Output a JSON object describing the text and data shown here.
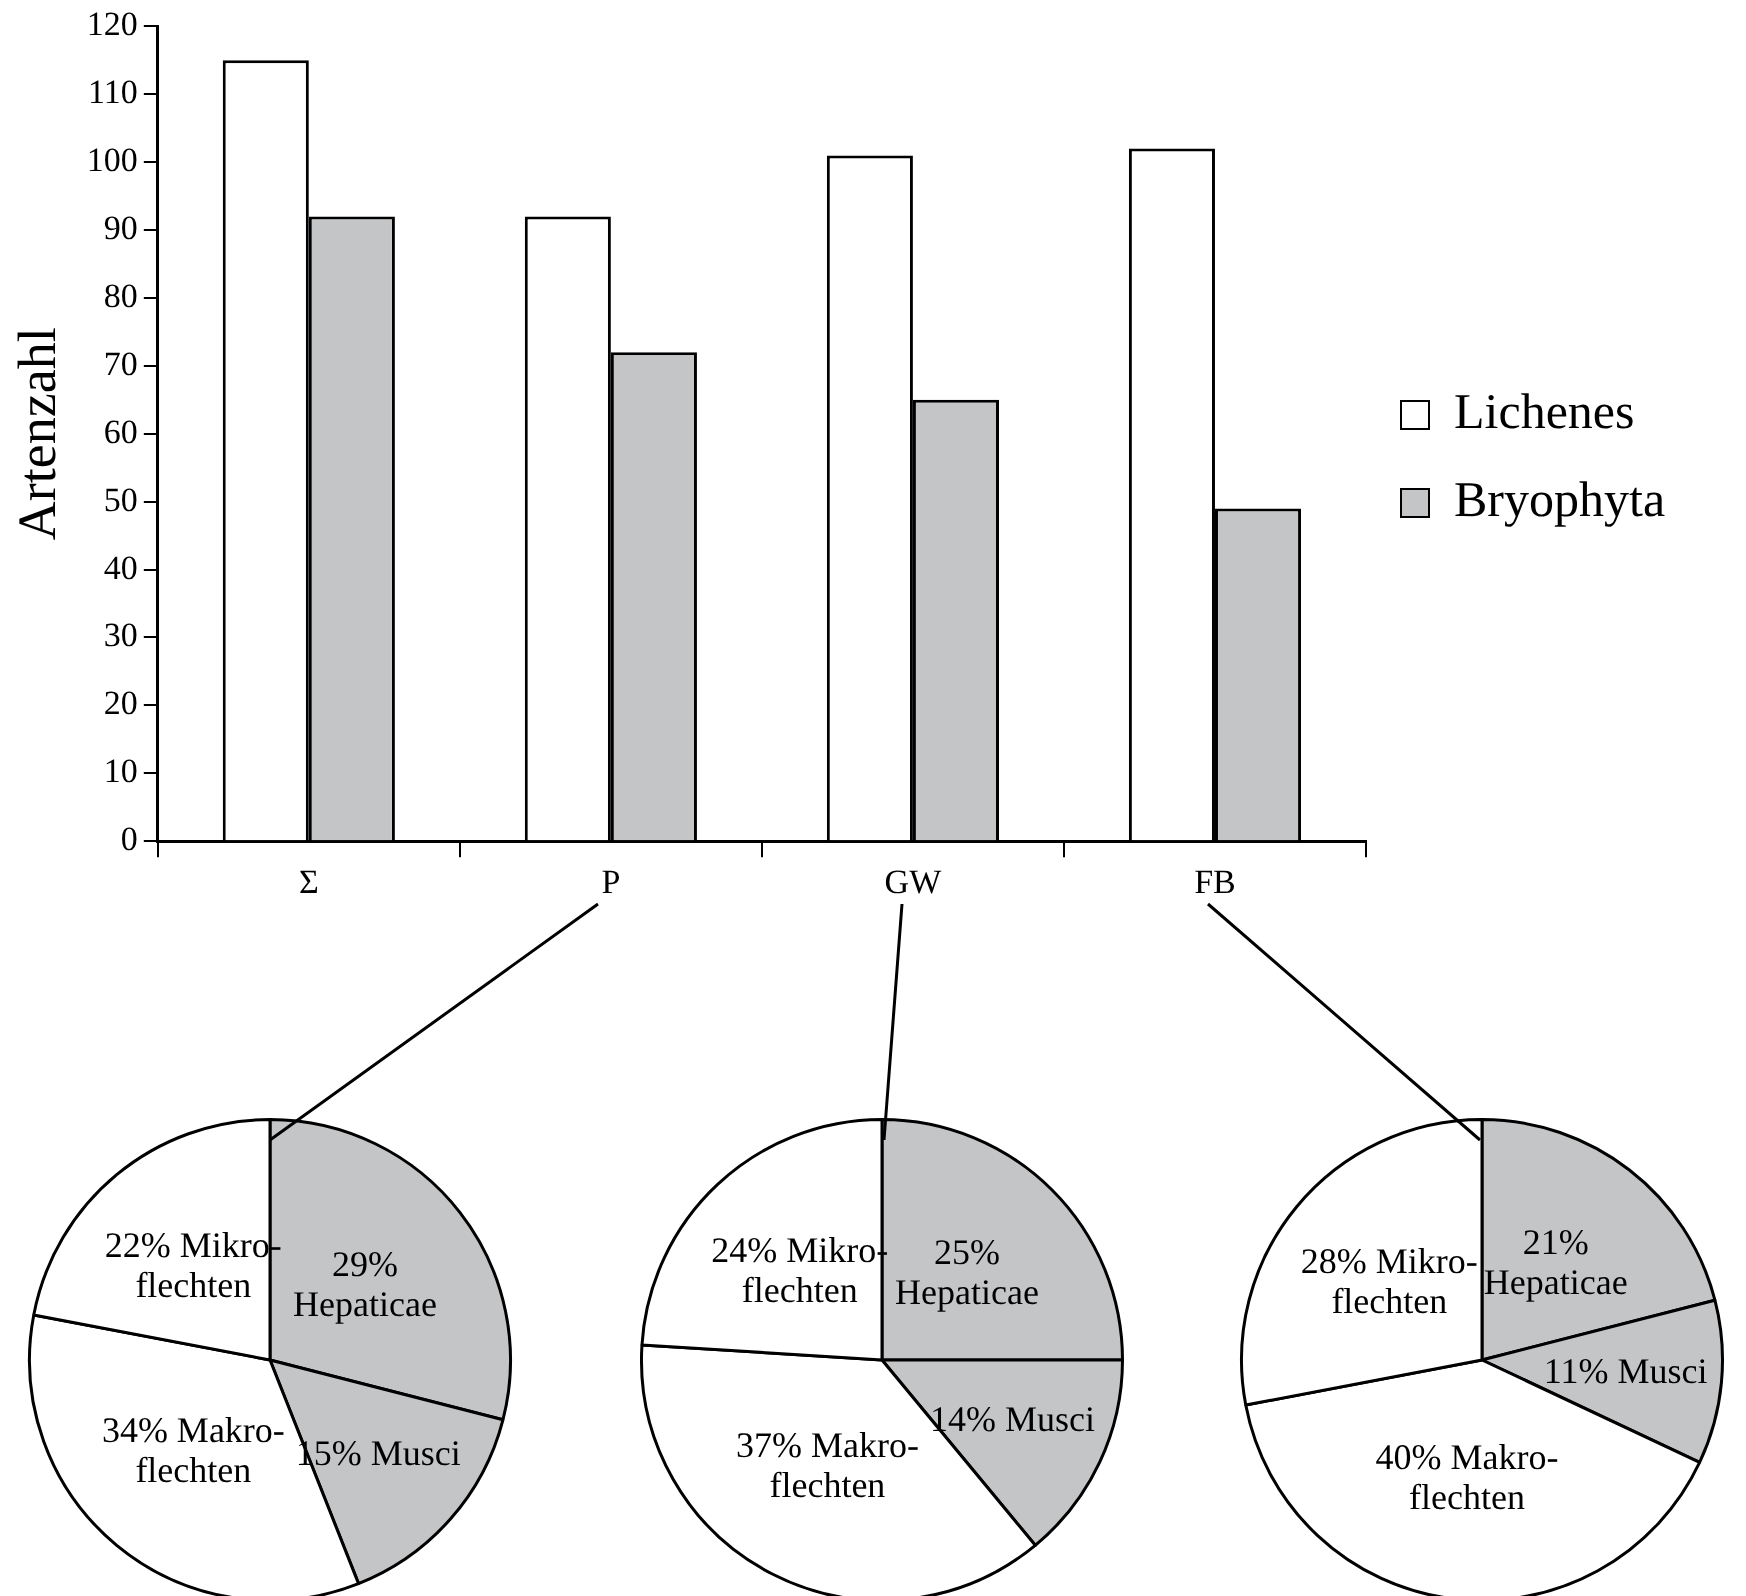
{
  "chart_data": [
    {
      "type": "bar",
      "categories": [
        "Σ",
        "P",
        "GW",
        "FB"
      ],
      "ylabel": "Artenzahl",
      "ylim": [
        0,
        120
      ],
      "yticks": [
        0,
        10,
        20,
        30,
        40,
        50,
        60,
        70,
        80,
        90,
        100,
        110,
        120
      ],
      "grid": false,
      "legend": "right",
      "series": [
        {
          "name": "Lichenes",
          "color": "#ffffff",
          "values": [
            115,
            92,
            101,
            102
          ]
        },
        {
          "name": "Bryophyta",
          "color": "#c4c5c7",
          "values": [
            92,
            72,
            65,
            49
          ]
        }
      ]
    },
    {
      "type": "pie",
      "categories": [
        "Hepaticae",
        "Musci",
        "Makro-flechten",
        "Mikro-flechten"
      ],
      "values": [
        29,
        15,
        34,
        22
      ],
      "value_labels": [
        "29%",
        "15%",
        "34%",
        "22%"
      ],
      "colors": [
        "#c4c5c7",
        "#c4c5c7",
        "#ffffff",
        "#ffffff"
      ]
    },
    {
      "type": "pie",
      "categories": [
        "Hepaticae",
        "Musci",
        "Makro-flechten",
        "Mikro-flechten"
      ],
      "values": [
        25,
        14,
        37,
        24
      ],
      "value_labels": [
        "25%",
        "14%",
        "37%",
        "24%"
      ],
      "colors": [
        "#c4c5c7",
        "#c4c5c7",
        "#ffffff",
        "#ffffff"
      ]
    },
    {
      "type": "pie",
      "categories": [
        "Hepaticae",
        "Musci",
        "Makro-flechten",
        "Mikro-flechten"
      ],
      "values": [
        21,
        11,
        40,
        28
      ],
      "value_labels": [
        "21%",
        "11%",
        "40%",
        "28%"
      ],
      "colors": [
        "#c4c5c7",
        "#c4c5c7",
        "#ffffff",
        "#ffffff"
      ]
    }
  ]
}
